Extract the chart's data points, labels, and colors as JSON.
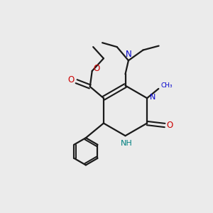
{
  "bg_color": "#ebebeb",
  "bond_color": "#1a1a1a",
  "n_color": "#0000cc",
  "o_color": "#cc0000",
  "nh_color": "#008080",
  "figsize": [
    3.0,
    3.0
  ],
  "dpi": 100,
  "xlim": [
    0,
    10
  ],
  "ylim": [
    0,
    10
  ]
}
